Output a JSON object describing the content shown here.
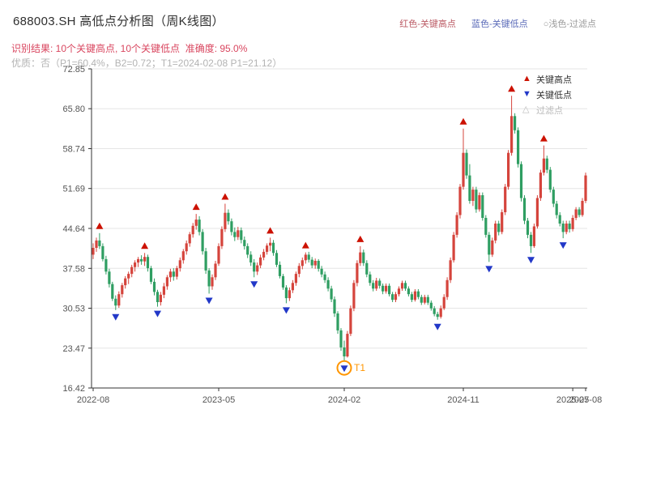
{
  "header": {
    "title": "688003.SH 高低点分析图（周K线图）",
    "legend_top": [
      {
        "label": "红色-关键高点",
        "color": "#bb5a64"
      },
      {
        "label": "蓝色-关键低点",
        "color": "#5a6ab8"
      },
      {
        "label": "○浅色-过滤点",
        "color": "#9a9a9a"
      }
    ],
    "result_line": "识别结果: 10个关键高点, 10个关键低点  准确度: 95.0%",
    "quality_line": "优质：否（P1=60.4%，B2=0.72；T1=2024-02-08 P1=21.12）"
  },
  "plot_legend": {
    "items": [
      {
        "label": "关键高点",
        "symbol": "▲",
        "color": "#cc1100",
        "label_color": "#333333"
      },
      {
        "label": "关键低点",
        "symbol": "▼",
        "color": "#2238c8",
        "label_color": "#333333"
      },
      {
        "label": "过滤点",
        "symbol": "△",
        "color": "#bbbbbb",
        "label_color": "#bbbbbb"
      }
    ]
  },
  "chart_data": {
    "type": "candlestick",
    "title": "688003.SH 高低点分析图（周K线图）",
    "frequency": "weekly",
    "x_range": [
      "2022-08",
      "2025-08"
    ],
    "ylim": [
      16.42,
      72.85
    ],
    "grid": "horizontal",
    "y_ticks": [
      {
        "v": 72.85,
        "label": "72.85"
      },
      {
        "v": 65.8,
        "label": "65.80"
      },
      {
        "v": 58.74,
        "label": "58.74"
      },
      {
        "v": 51.69,
        "label": "51.69"
      },
      {
        "v": 44.64,
        "label": "44.64"
      },
      {
        "v": 37.58,
        "label": "37.58"
      },
      {
        "v": 30.53,
        "label": "30.53"
      },
      {
        "v": 23.47,
        "label": "23.47"
      },
      {
        "v": 16.42,
        "label": "16.42"
      }
    ],
    "x_ticks": [
      {
        "week": 0,
        "label": "2022-08"
      },
      {
        "week": 39,
        "label": "2023-05"
      },
      {
        "week": 78,
        "label": "2024-02"
      },
      {
        "week": 115,
        "label": "2024-11"
      },
      {
        "week": 149,
        "label": "2025-07"
      },
      {
        "week": 153,
        "label": "2025-08"
      }
    ],
    "colors": {
      "up": "#d5443c",
      "down": "#2f9e62",
      "key_high": "#cc1100",
      "key_low": "#2238c8",
      "filtered": "#bbbbbb",
      "t1": "#ff9500",
      "grid": "#e6e6e6",
      "axis": "#333333",
      "tick_text": "#555555"
    },
    "candles": [
      [
        40.0,
        42.0,
        39.2,
        41.2
      ],
      [
        41.2,
        43.0,
        40.5,
        42.5
      ],
      [
        42.5,
        43.8,
        41.0,
        41.5
      ],
      [
        41.5,
        42.0,
        38.8,
        39.2
      ],
      [
        39.2,
        39.8,
        36.5,
        37.0
      ],
      [
        37.0,
        37.5,
        34.2,
        34.8
      ],
      [
        34.8,
        35.2,
        31.8,
        32.2
      ],
      [
        32.2,
        32.8,
        30.2,
        31.0
      ],
      [
        31.0,
        33.5,
        30.6,
        33.0
      ],
      [
        33.0,
        35.0,
        32.4,
        34.6
      ],
      [
        34.6,
        36.2,
        34.0,
        35.8
      ],
      [
        35.8,
        37.0,
        34.8,
        36.6
      ],
      [
        36.6,
        38.2,
        36.0,
        37.8
      ],
      [
        37.8,
        39.0,
        37.0,
        38.6
      ],
      [
        38.6,
        39.6,
        37.8,
        39.2
      ],
      [
        39.2,
        39.9,
        38.2,
        38.8
      ],
      [
        38.8,
        40.3,
        38.0,
        39.6
      ],
      [
        39.6,
        40.0,
        37.0,
        37.6
      ],
      [
        37.6,
        38.0,
        34.8,
        35.2
      ],
      [
        35.2,
        35.8,
        32.8,
        33.4
      ],
      [
        33.4,
        33.8,
        30.8,
        31.6
      ],
      [
        31.6,
        33.4,
        31.0,
        32.9
      ],
      [
        32.9,
        35.0,
        32.3,
        34.4
      ],
      [
        34.4,
        36.4,
        33.8,
        36.0
      ],
      [
        36.0,
        37.5,
        35.2,
        37.0
      ],
      [
        37.0,
        37.6,
        35.4,
        36.1
      ],
      [
        36.1,
        38.0,
        35.6,
        37.6
      ],
      [
        37.6,
        39.5,
        37.0,
        39.0
      ],
      [
        39.0,
        41.0,
        38.4,
        40.6
      ],
      [
        40.6,
        42.5,
        40.0,
        42.0
      ],
      [
        42.0,
        44.0,
        41.4,
        43.6
      ],
      [
        43.6,
        45.6,
        43.0,
        45.1
      ],
      [
        45.1,
        47.2,
        44.4,
        46.2
      ],
      [
        46.2,
        46.8,
        43.4,
        44.0
      ],
      [
        44.0,
        44.5,
        40.0,
        40.6
      ],
      [
        40.6,
        41.2,
        36.6,
        37.2
      ],
      [
        37.2,
        37.6,
        33.1,
        34.4
      ],
      [
        34.4,
        36.5,
        33.8,
        36.0
      ],
      [
        36.0,
        38.9,
        35.5,
        38.4
      ],
      [
        38.4,
        42.0,
        38.0,
        41.5
      ],
      [
        41.5,
        45.0,
        41.0,
        44.5
      ],
      [
        44.5,
        49.0,
        44.0,
        47.4
      ],
      [
        47.4,
        48.0,
        45.3,
        45.9
      ],
      [
        45.9,
        46.4,
        43.4,
        44.0
      ],
      [
        44.0,
        44.8,
        42.4,
        43.1
      ],
      [
        43.1,
        44.9,
        42.6,
        44.3
      ],
      [
        44.3,
        44.8,
        42.0,
        42.6
      ],
      [
        42.6,
        43.2,
        40.9,
        41.5
      ],
      [
        41.5,
        42.0,
        39.4,
        40.0
      ],
      [
        40.0,
        40.6,
        38.0,
        38.6
      ],
      [
        38.6,
        39.2,
        36.0,
        37.0
      ],
      [
        37.0,
        38.6,
        36.4,
        38.1
      ],
      [
        38.1,
        40.0,
        37.6,
        39.5
      ],
      [
        39.5,
        41.0,
        39.0,
        40.5
      ],
      [
        40.5,
        42.0,
        40.0,
        41.6
      ],
      [
        41.6,
        43.0,
        40.6,
        42.1
      ],
      [
        42.1,
        42.6,
        39.8,
        40.3
      ],
      [
        40.3,
        40.8,
        37.8,
        38.2
      ],
      [
        38.2,
        38.8,
        35.8,
        36.2
      ],
      [
        36.2,
        36.6,
        33.8,
        34.2
      ],
      [
        34.2,
        34.6,
        31.4,
        32.3
      ],
      [
        32.3,
        34.2,
        31.8,
        33.7
      ],
      [
        33.7,
        35.5,
        33.2,
        35.0
      ],
      [
        35.0,
        37.0,
        34.5,
        36.6
      ],
      [
        36.6,
        38.5,
        36.0,
        38.0
      ],
      [
        38.0,
        39.5,
        37.4,
        39.0
      ],
      [
        39.0,
        40.4,
        38.4,
        40.0
      ],
      [
        40.0,
        40.5,
        38.6,
        39.1
      ],
      [
        39.1,
        39.6,
        37.6,
        38.1
      ],
      [
        38.1,
        39.3,
        37.5,
        38.9
      ],
      [
        38.9,
        39.2,
        37.0,
        37.5
      ],
      [
        37.5,
        38.0,
        36.0,
        36.5
      ],
      [
        36.5,
        37.0,
        35.0,
        35.5
      ],
      [
        35.5,
        36.0,
        33.5,
        34.0
      ],
      [
        34.0,
        34.5,
        31.6,
        32.1
      ],
      [
        32.1,
        32.6,
        29.0,
        29.6
      ],
      [
        29.6,
        30.0,
        26.0,
        26.6
      ],
      [
        26.6,
        27.0,
        23.0,
        23.6
      ],
      [
        23.6,
        24.8,
        21.12,
        22.0
      ],
      [
        22.0,
        26.5,
        21.8,
        26.0
      ],
      [
        26.0,
        31.0,
        25.6,
        30.5
      ],
      [
        30.5,
        35.5,
        30.0,
        35.0
      ],
      [
        35.0,
        39.0,
        34.4,
        38.5
      ],
      [
        38.5,
        41.5,
        38.0,
        40.4
      ],
      [
        40.4,
        40.9,
        38.0,
        38.5
      ],
      [
        38.5,
        39.0,
        36.0,
        36.5
      ],
      [
        36.5,
        37.0,
        34.5,
        35.0
      ],
      [
        35.0,
        35.5,
        33.5,
        34.0
      ],
      [
        34.0,
        35.9,
        33.6,
        35.4
      ],
      [
        35.4,
        35.8,
        34.0,
        34.5
      ],
      [
        34.5,
        34.9,
        33.0,
        33.5
      ],
      [
        33.5,
        34.9,
        33.1,
        34.5
      ],
      [
        34.5,
        34.9,
        32.6,
        33.0
      ],
      [
        33.0,
        33.4,
        31.6,
        32.0
      ],
      [
        32.0,
        33.4,
        31.6,
        33.0
      ],
      [
        33.0,
        34.4,
        32.6,
        34.0
      ],
      [
        34.0,
        35.4,
        33.6,
        35.0
      ],
      [
        35.0,
        35.4,
        33.6,
        34.0
      ],
      [
        34.0,
        34.4,
        32.6,
        33.0
      ],
      [
        33.0,
        33.4,
        31.6,
        32.0
      ],
      [
        32.0,
        33.9,
        31.7,
        33.5
      ],
      [
        33.5,
        33.9,
        32.1,
        32.5
      ],
      [
        32.5,
        32.9,
        31.1,
        31.5
      ],
      [
        31.5,
        32.9,
        31.2,
        32.5
      ],
      [
        32.5,
        32.9,
        31.1,
        31.5
      ],
      [
        31.5,
        31.9,
        30.1,
        30.5
      ],
      [
        30.5,
        30.9,
        29.1,
        29.5
      ],
      [
        29.5,
        29.9,
        28.5,
        29.0
      ],
      [
        29.0,
        31.0,
        28.7,
        30.5
      ],
      [
        30.5,
        33.0,
        30.2,
        32.5
      ],
      [
        32.5,
        36.0,
        32.0,
        35.5
      ],
      [
        35.5,
        39.5,
        35.0,
        39.0
      ],
      [
        39.0,
        44.0,
        38.6,
        43.5
      ],
      [
        43.5,
        47.5,
        43.0,
        47.0
      ],
      [
        47.0,
        52.5,
        46.4,
        52.0
      ],
      [
        52.0,
        62.3,
        51.5,
        58.0
      ],
      [
        58.0,
        58.6,
        53.4,
        54.0
      ],
      [
        54.0,
        56.0,
        49.0,
        49.5
      ],
      [
        49.5,
        52.0,
        48.6,
        51.5
      ],
      [
        51.5,
        52.0,
        47.4,
        48.0
      ],
      [
        48.0,
        51.0,
        47.6,
        50.5
      ],
      [
        50.5,
        51.0,
        46.0,
        46.5
      ],
      [
        46.5,
        47.0,
        43.0,
        43.5
      ],
      [
        43.5,
        44.0,
        38.7,
        40.0
      ],
      [
        40.0,
        43.0,
        39.6,
        42.5
      ],
      [
        42.5,
        46.0,
        42.0,
        45.5
      ],
      [
        45.5,
        46.0,
        43.4,
        44.0
      ],
      [
        44.0,
        48.0,
        43.6,
        47.5
      ],
      [
        47.5,
        52.5,
        47.0,
        52.0
      ],
      [
        52.0,
        58.5,
        51.5,
        58.0
      ],
      [
        58.0,
        68.1,
        57.5,
        64.5
      ],
      [
        64.5,
        65.0,
        61.4,
        62.0
      ],
      [
        62.0,
        62.5,
        55.4,
        56.0
      ],
      [
        56.0,
        56.5,
        49.4,
        50.0
      ],
      [
        50.0,
        50.5,
        45.4,
        46.0
      ],
      [
        46.0,
        46.5,
        42.9,
        43.5
      ],
      [
        43.5,
        44.0,
        40.3,
        41.5
      ],
      [
        41.5,
        45.5,
        41.2,
        45.0
      ],
      [
        45.0,
        50.5,
        44.6,
        50.0
      ],
      [
        50.0,
        55.0,
        49.5,
        54.5
      ],
      [
        54.5,
        59.3,
        54.0,
        57.0
      ],
      [
        57.0,
        57.5,
        54.4,
        55.0
      ],
      [
        55.0,
        55.5,
        51.0,
        51.5
      ],
      [
        51.5,
        52.0,
        48.4,
        49.0
      ],
      [
        49.0,
        49.5,
        46.4,
        47.0
      ],
      [
        47.0,
        47.5,
        45.0,
        45.5
      ],
      [
        45.5,
        46.0,
        42.9,
        44.0
      ],
      [
        44.0,
        46.0,
        43.6,
        45.5
      ],
      [
        45.5,
        46.0,
        43.9,
        44.5
      ],
      [
        44.5,
        47.0,
        44.1,
        46.5
      ],
      [
        46.5,
        48.4,
        46.1,
        48.0
      ],
      [
        48.0,
        48.4,
        46.6,
        47.0
      ],
      [
        47.0,
        50.0,
        46.7,
        49.5
      ],
      [
        49.5,
        54.5,
        49.1,
        54.0
      ]
    ],
    "markers": {
      "key_highs": [
        {
          "week": 2,
          "price": 43.8
        },
        {
          "week": 16,
          "price": 40.3
        },
        {
          "week": 32,
          "price": 47.2
        },
        {
          "week": 41,
          "price": 49.0
        },
        {
          "week": 55,
          "price": 43.0
        },
        {
          "week": 66,
          "price": 40.4
        },
        {
          "week": 83,
          "price": 41.5
        },
        {
          "week": 115,
          "price": 62.3
        },
        {
          "week": 130,
          "price": 68.1
        },
        {
          "week": 140,
          "price": 59.3
        }
      ],
      "key_lows": [
        {
          "week": 7,
          "price": 30.2
        },
        {
          "week": 20,
          "price": 30.8
        },
        {
          "week": 36,
          "price": 33.1
        },
        {
          "week": 50,
          "price": 36.0
        },
        {
          "week": 60,
          "price": 31.4
        },
        {
          "week": 78,
          "price": 21.12
        },
        {
          "week": 107,
          "price": 28.5
        },
        {
          "week": 123,
          "price": 38.7
        },
        {
          "week": 136,
          "price": 40.3
        },
        {
          "week": 146,
          "price": 42.9
        }
      ],
      "t1": {
        "week": 78,
        "price": 21.12,
        "label": "T1",
        "date": "2024-02-08"
      }
    }
  }
}
